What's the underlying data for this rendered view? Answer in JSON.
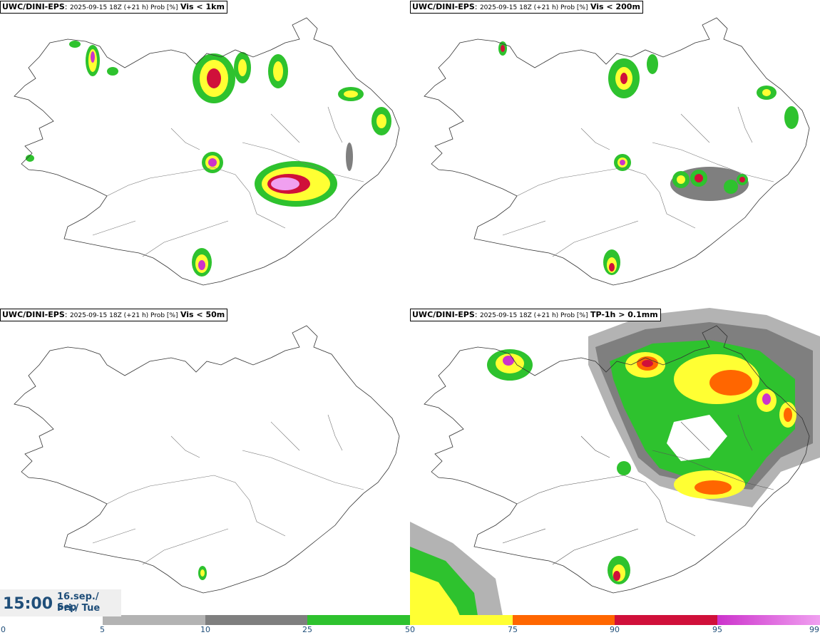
{
  "panels": [
    {
      "model": "UWC/DINI-EPS",
      "meta": "2025-09-15 18Z (+21 h) Prob [%]",
      "variable": "Vis < 1km"
    },
    {
      "model": "UWC/DINI-EPS",
      "meta": "2025-09-15 18Z (+21 h) Prob [%]",
      "variable": "Vis < 200m"
    },
    {
      "model": "UWC/DINI-EPS",
      "meta": "2025-09-15 18Z (+21 h) Prob [%]",
      "variable": "Vis < 50m"
    },
    {
      "model": "UWC/DINI-EPS",
      "meta": "2025-09-15 18Z (+21 h) Prob [%]",
      "variable": "TP-1h > 0.1mm"
    }
  ],
  "valid_time": {
    "clock": "15:00",
    "date": "16.sep./ Sep",
    "weekday": "Þri./ Tue"
  },
  "colorbar": {
    "ticks": [
      "0",
      "5",
      "10",
      "25",
      "50",
      "75",
      "90",
      "95",
      "99"
    ],
    "colors": [
      "#ffffff",
      "#b3b3b3",
      "#7f7f7f",
      "#2ec22e",
      "#ffff33",
      "#ff6600",
      "#d0103a",
      "#cc33cc",
      "#f0a0f0"
    ]
  }
}
